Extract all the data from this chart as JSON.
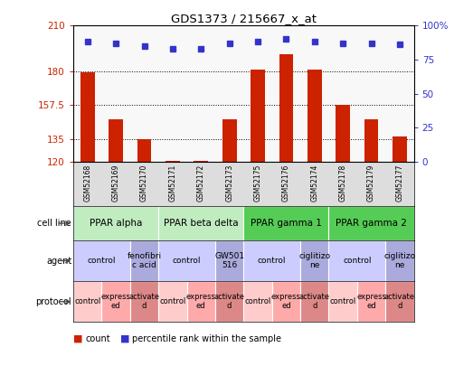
{
  "title": "GDS1373 / 215667_x_at",
  "samples": [
    "GSM52168",
    "GSM52169",
    "GSM52170",
    "GSM52171",
    "GSM52172",
    "GSM52173",
    "GSM52175",
    "GSM52176",
    "GSM52174",
    "GSM52178",
    "GSM52179",
    "GSM52177"
  ],
  "counts": [
    179,
    148,
    135,
    121,
    121,
    148,
    181,
    191,
    181,
    157.5,
    148,
    137
  ],
  "percentiles": [
    88,
    87,
    85,
    83,
    83,
    87,
    88,
    90,
    88,
    87,
    87,
    86
  ],
  "bar_color": "#cc2200",
  "dot_color": "#3333cc",
  "count_color": "#cc2200",
  "percentile_color": "#3333cc",
  "ymin": 120,
  "ymax": 210,
  "yticks": [
    120,
    135,
    157.5,
    180,
    210
  ],
  "ytick_labels": [
    "120",
    "135",
    "157.5",
    "180",
    "210"
  ],
  "pct_yticks": [
    0,
    25,
    50,
    75,
    100
  ],
  "pct_ytick_labels": [
    "0",
    "25",
    "50",
    "75",
    "100%"
  ],
  "hgrid_vals": [
    135,
    157.5,
    180
  ],
  "cell_lines": [
    {
      "label": "PPAR alpha",
      "start": 0,
      "end": 3,
      "color": "#c0ecc0"
    },
    {
      "label": "PPAR beta delta",
      "start": 3,
      "end": 6,
      "color": "#c0ecc0"
    },
    {
      "label": "PPAR gamma 1",
      "start": 6,
      "end": 9,
      "color": "#55cc55"
    },
    {
      "label": "PPAR gamma 2",
      "start": 9,
      "end": 12,
      "color": "#55cc55"
    }
  ],
  "agents": [
    {
      "label": "control",
      "start": 0,
      "end": 2,
      "color": "#ccccff"
    },
    {
      "label": "fenofibri\nc acid",
      "start": 2,
      "end": 3,
      "color": "#aaaadd"
    },
    {
      "label": "control",
      "start": 3,
      "end": 5,
      "color": "#ccccff"
    },
    {
      "label": "GW501\n516",
      "start": 5,
      "end": 6,
      "color": "#aaaadd"
    },
    {
      "label": "control",
      "start": 6,
      "end": 8,
      "color": "#ccccff"
    },
    {
      "label": "ciglitizo\nne",
      "start": 8,
      "end": 9,
      "color": "#aaaadd"
    },
    {
      "label": "control",
      "start": 9,
      "end": 11,
      "color": "#ccccff"
    },
    {
      "label": "ciglitizo\nne",
      "start": 11,
      "end": 12,
      "color": "#aaaadd"
    }
  ],
  "protocols": [
    {
      "label": "control",
      "start": 0,
      "end": 1,
      "color": "#ffcccc"
    },
    {
      "label": "express\ned",
      "start": 1,
      "end": 2,
      "color": "#ffaaaa"
    },
    {
      "label": "activate\nd",
      "start": 2,
      "end": 3,
      "color": "#dd8888"
    },
    {
      "label": "control",
      "start": 3,
      "end": 4,
      "color": "#ffcccc"
    },
    {
      "label": "express\ned",
      "start": 4,
      "end": 5,
      "color": "#ffaaaa"
    },
    {
      "label": "activate\nd",
      "start": 5,
      "end": 6,
      "color": "#dd8888"
    },
    {
      "label": "control",
      "start": 6,
      "end": 7,
      "color": "#ffcccc"
    },
    {
      "label": "express\ned",
      "start": 7,
      "end": 8,
      "color": "#ffaaaa"
    },
    {
      "label": "activate\nd",
      "start": 8,
      "end": 9,
      "color": "#dd8888"
    },
    {
      "label": "control",
      "start": 9,
      "end": 10,
      "color": "#ffcccc"
    },
    {
      "label": "express\ned",
      "start": 10,
      "end": 11,
      "color": "#ffaaaa"
    },
    {
      "label": "activate\nd",
      "start": 11,
      "end": 12,
      "color": "#dd8888"
    }
  ],
  "bg_color": "#ffffff",
  "sample_bg": "#dddddd"
}
